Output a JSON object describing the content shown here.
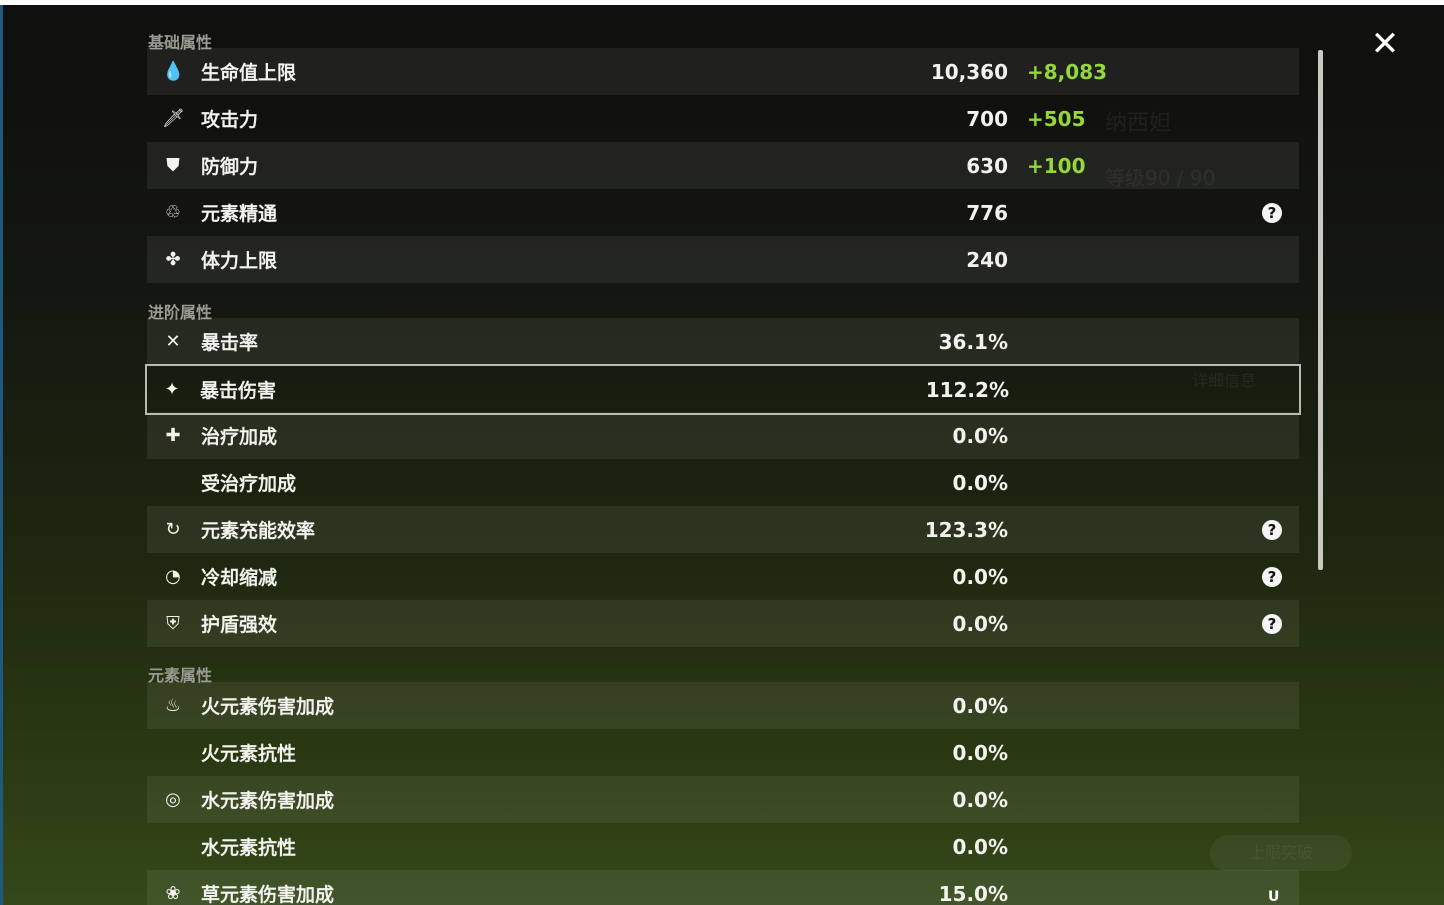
{
  "background": {
    "character_name": "纳西妲",
    "level": "等级90 / 90",
    "detail_button": "详细信息",
    "ascend_button": "上限突破"
  },
  "close_icon": "close-icon",
  "uid": "U",
  "colors": {
    "bonus": "#94d63c",
    "text": "#f2f2ee",
    "section": "#9b9a92"
  },
  "sections": [
    {
      "title": "基础属性",
      "rows": [
        {
          "icon": "hp-drop-icon",
          "label": "生命值上限",
          "value": "10,360",
          "bonus": "+8,083"
        },
        {
          "icon": "sword-icon",
          "label": "攻击力",
          "value": "700",
          "bonus": "+505"
        },
        {
          "icon": "shield-icon",
          "label": "防御力",
          "value": "630",
          "bonus": "+100"
        },
        {
          "icon": "elemental-mastery-icon",
          "label": "元素精通",
          "value": "776",
          "help": true
        },
        {
          "icon": "stamina-icon",
          "label": "体力上限",
          "value": "240"
        }
      ]
    },
    {
      "title": "进阶属性",
      "rows": [
        {
          "icon": "crit-rate-icon",
          "label": "暴击率",
          "value": "36.1%"
        },
        {
          "icon": "crit-dmg-icon",
          "label": "暴击伤害",
          "value": "112.2%",
          "selected": true
        },
        {
          "icon": "healing-cross-icon",
          "label": "治疗加成",
          "value": "0.0%"
        },
        {
          "icon": "",
          "label": "受治疗加成",
          "value": "0.0%"
        },
        {
          "icon": "energy-recharge-icon",
          "label": "元素充能效率",
          "value": "123.3%",
          "help": true
        },
        {
          "icon": "cooldown-icon",
          "label": "冷却缩减",
          "value": "0.0%",
          "help": true
        },
        {
          "icon": "shield-strength-icon",
          "label": "护盾强效",
          "value": "0.0%",
          "help": true
        }
      ]
    },
    {
      "title": "元素属性",
      "rows": [
        {
          "icon": "pyro-icon",
          "label": "火元素伤害加成",
          "value": "0.0%"
        },
        {
          "icon": "",
          "label": "火元素抗性",
          "value": "0.0%"
        },
        {
          "icon": "hydro-icon",
          "label": "水元素伤害加成",
          "value": "0.0%"
        },
        {
          "icon": "",
          "label": "水元素抗性",
          "value": "0.0%"
        },
        {
          "icon": "dendro-icon",
          "label": "草元素伤害加成",
          "value": "15.0%"
        }
      ]
    }
  ]
}
